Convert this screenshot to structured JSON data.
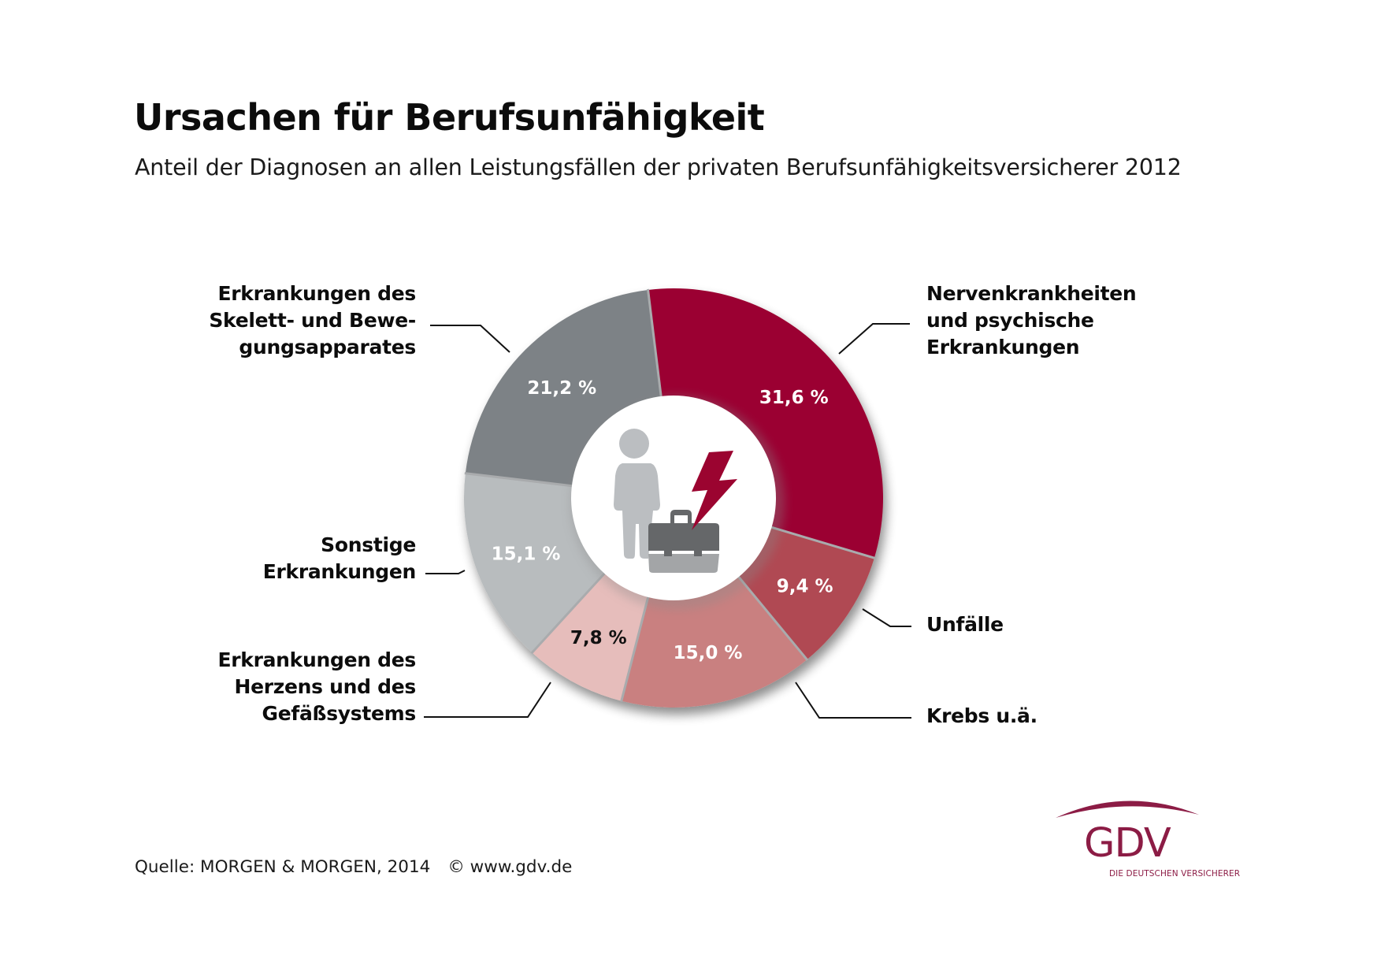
{
  "header": {
    "title": "Ursachen für Berufsunfähigkeit",
    "subtitle": "Anteil der Diagnosen an allen Leistungsfällen der privaten Berufsunfähigkeitsversicherer 2012"
  },
  "chart_data": {
    "type": "pie",
    "variant": "donut",
    "title": "Ursachen für Berufsunfähigkeit",
    "subtitle": "Anteil der Diagnosen an allen Leistungsfällen der privaten Berufsunfähigkeitsversicherer 2012",
    "unit": "%",
    "start_angle_deg": -7,
    "direction": "clockwise",
    "slices": [
      {
        "label": "Nervenkrankheiten und psychische Erkrankungen",
        "label_lines": [
          "Nervenkrankheiten",
          "und psychische",
          "Erkrankungen"
        ],
        "value": 31.6,
        "display": "31,6 %",
        "color": "#9b0430",
        "text_color": "#ffffff"
      },
      {
        "label": "Unfälle",
        "label_lines": [
          "Unfälle"
        ],
        "value": 9.4,
        "display": "9,4 %",
        "color": "#b04a52",
        "text_color": "#ffffff"
      },
      {
        "label": "Krebs u.ä.",
        "label_lines": [
          "Krebs u.ä."
        ],
        "value": 15.0,
        "display": "15,0 %",
        "color": "#c98080",
        "text_color": "#ffffff"
      },
      {
        "label": "Erkrankungen des Herzens und des Gefäßsystems",
        "label_lines": [
          "Erkrankungen des",
          "Herzens und des",
          "Gefäßsystems"
        ],
        "value": 7.8,
        "display": "7,8 %",
        "color": "#e6bdbb",
        "text_color": "#111111"
      },
      {
        "label": "Sonstige Erkrankungen",
        "label_lines": [
          "Sonstige",
          "Erkrankungen"
        ],
        "value": 15.1,
        "display": "15,1 %",
        "color": "#b8bcbe",
        "text_color": "#ffffff"
      },
      {
        "label": "Erkrankungen des Skelett- und Bewegungsapparates",
        "label_lines": [
          "Erkrankungen des",
          "Skelett- und Bewe-",
          "gungsapparates"
        ],
        "value": 21.2,
        "display": "21,2 %",
        "color": "#7d8286",
        "text_color": "#ffffff"
      }
    ],
    "center_icon": "person-briefcase-lightning-icon"
  },
  "footer": {
    "source": "Quelle: MORGEN & MORGEN, 2014",
    "copyright": "© www.gdv.de"
  },
  "logo": {
    "name": "GDV",
    "tagline": "DIE DEUTSCHEN VERSICHERER",
    "color": "#8c1c45"
  },
  "icon_colors": {
    "person": "#bbbec1",
    "briefcase_top": "#656769",
    "briefcase_bottom": "#a3a5a7",
    "bolt": "#9b0430"
  }
}
